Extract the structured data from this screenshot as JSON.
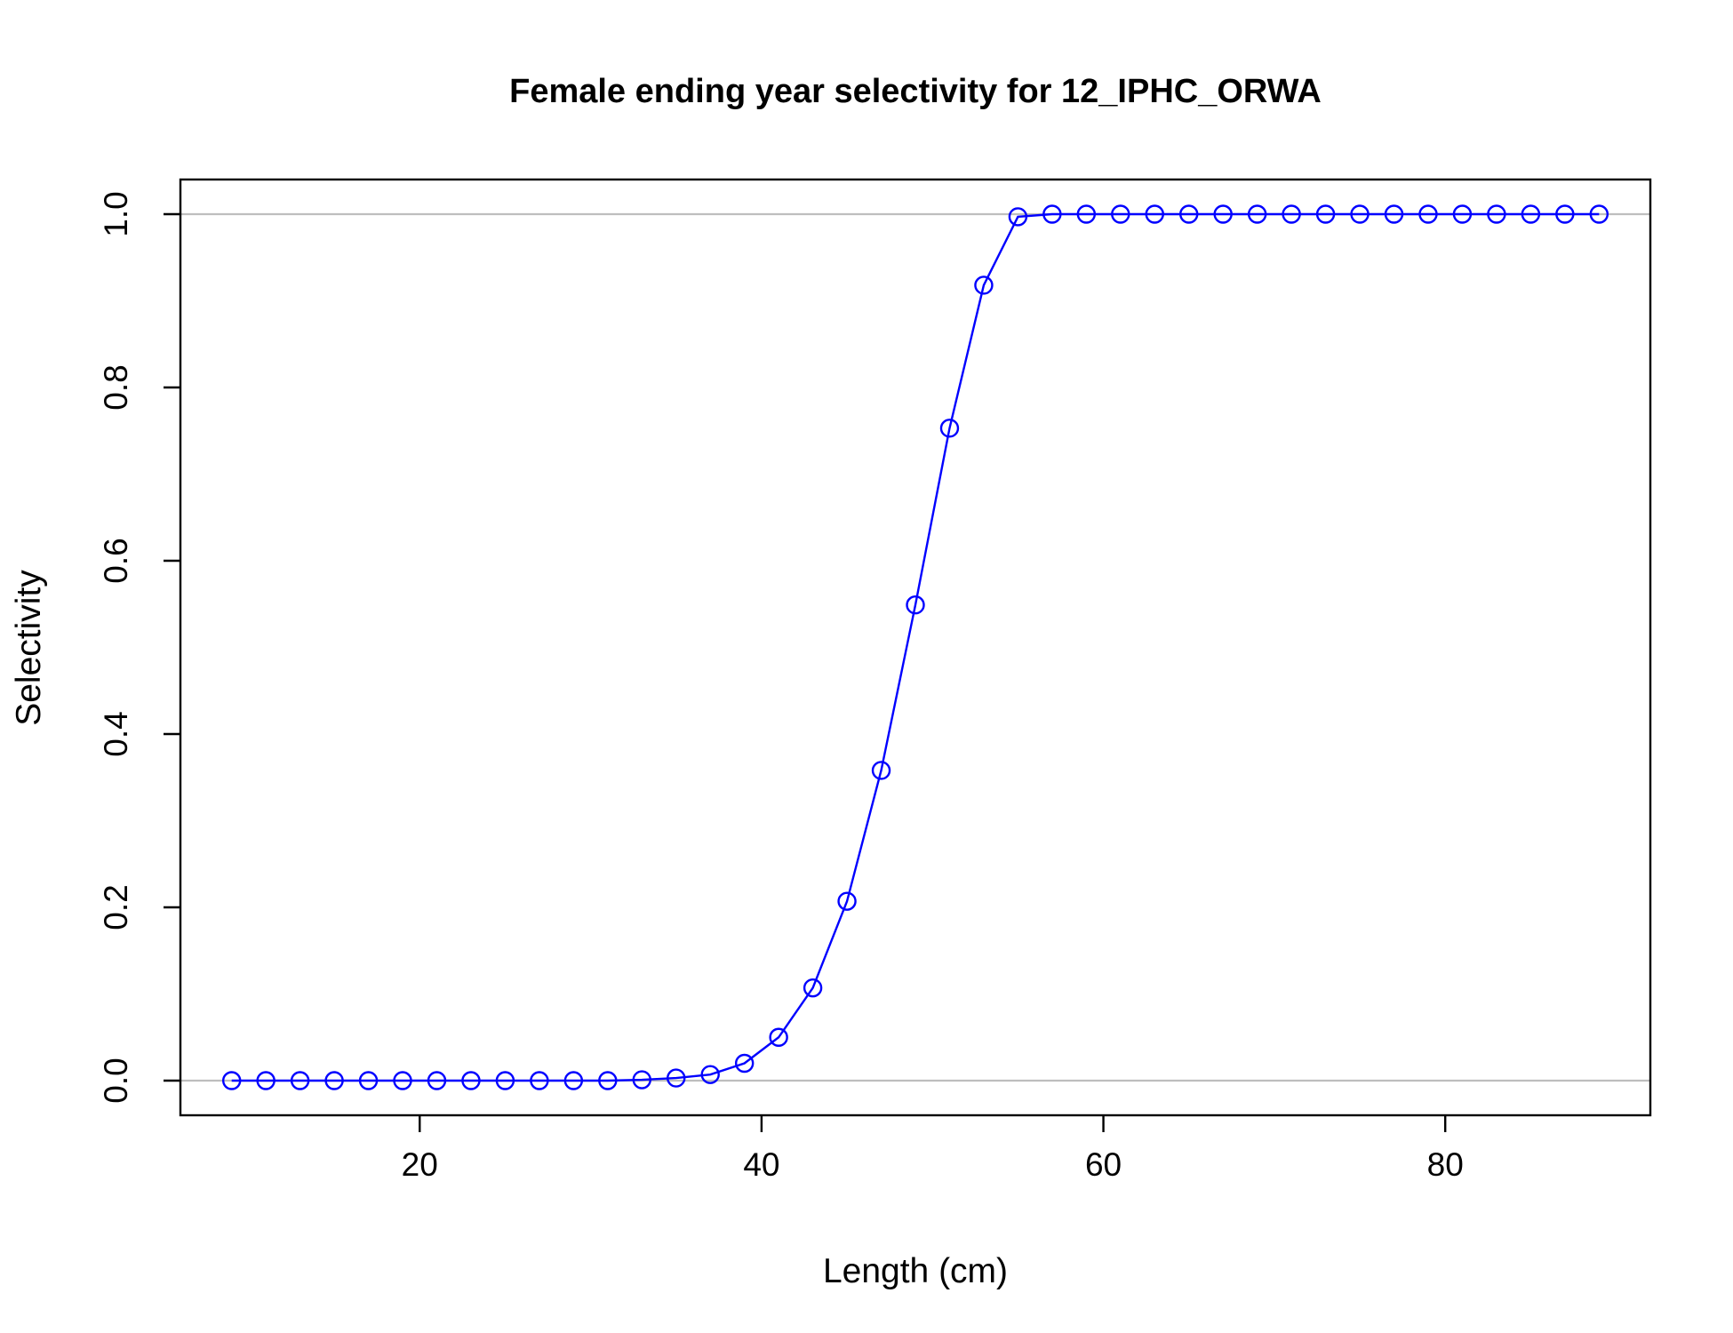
{
  "chart_data": {
    "type": "line",
    "title": "Female ending year selectivity for 12_IPHC_ORWA",
    "xlabel": "Length (cm)",
    "ylabel": "Selectivity",
    "xlim": [
      6,
      92
    ],
    "ylim": [
      -0.04,
      1.04
    ],
    "x_ticks": [
      20,
      40,
      60,
      80
    ],
    "x_tick_labels": [
      "20",
      "40",
      "60",
      "80"
    ],
    "y_ticks": [
      0.0,
      0.2,
      0.4,
      0.6,
      0.8,
      1.0
    ],
    "y_tick_labels": [
      "0.0",
      "0.2",
      "0.4",
      "0.6",
      "0.8",
      "1.0"
    ],
    "reference_lines": [
      0,
      1
    ],
    "grid": false,
    "legend": "none",
    "series": [
      {
        "name": "Selectivity",
        "color": "#0000ff",
        "marker": "open-circle",
        "x": [
          9,
          11,
          13,
          15,
          17,
          19,
          21,
          23,
          25,
          27,
          29,
          31,
          33,
          35,
          37,
          39,
          41,
          43,
          45,
          47,
          49,
          51,
          53,
          55,
          57,
          59,
          61,
          63,
          65,
          67,
          69,
          71,
          73,
          75,
          77,
          79,
          81,
          83,
          85,
          87,
          89
        ],
        "values": [
          0,
          0,
          0,
          0,
          0,
          0,
          0,
          0,
          0,
          0,
          0,
          0,
          0.001,
          0.003,
          0.007,
          0.02,
          0.05,
          0.107,
          0.207,
          0.358,
          0.549,
          0.753,
          0.918,
          0.997,
          1,
          1,
          1,
          1,
          1,
          1,
          1,
          1,
          1,
          1,
          1,
          1,
          1,
          1,
          1,
          1,
          1
        ]
      }
    ]
  }
}
